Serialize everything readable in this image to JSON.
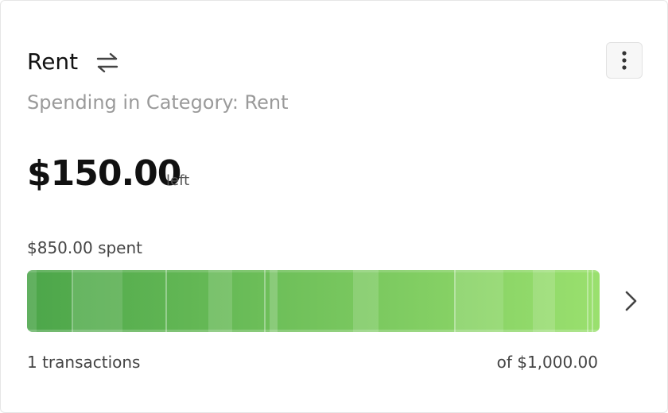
{
  "card": {
    "title": "Rent",
    "subtitle": "Spending in Category: Rent",
    "remaining": "$150.00",
    "remaining_suffix": "left",
    "spent": "$850.00 spent",
    "transactions": "1 transactions",
    "total": "of $1,000.00"
  }
}
